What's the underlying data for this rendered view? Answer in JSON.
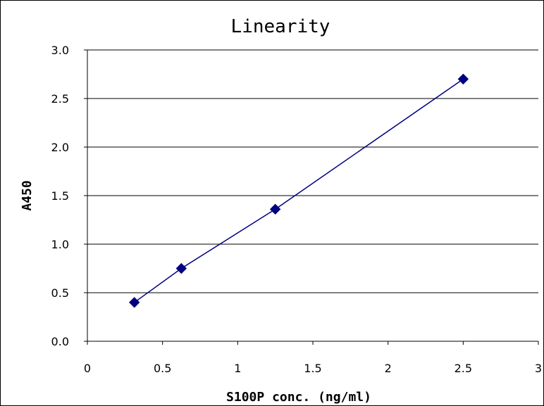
{
  "chart_data": {
    "type": "line",
    "title": "Linearity",
    "xlabel": "S100P conc. (ng/ml)",
    "ylabel": "A450",
    "xlim": [
      0,
      3
    ],
    "ylim": [
      0,
      3
    ],
    "x_ticks": [
      "0",
      "0.5",
      "1",
      "1.5",
      "2",
      "2.5",
      "3"
    ],
    "y_ticks": [
      "0.0",
      "0.5",
      "1.0",
      "1.5",
      "2.0",
      "2.5",
      "3.0"
    ],
    "grid": "horizontal",
    "legend": "none",
    "series": [
      {
        "x": [
          0.3125,
          0.625,
          1.25,
          2.5
        ],
        "y": [
          0.4,
          0.75,
          1.36,
          2.7
        ],
        "color": "#000080",
        "marker": "diamond"
      }
    ]
  }
}
